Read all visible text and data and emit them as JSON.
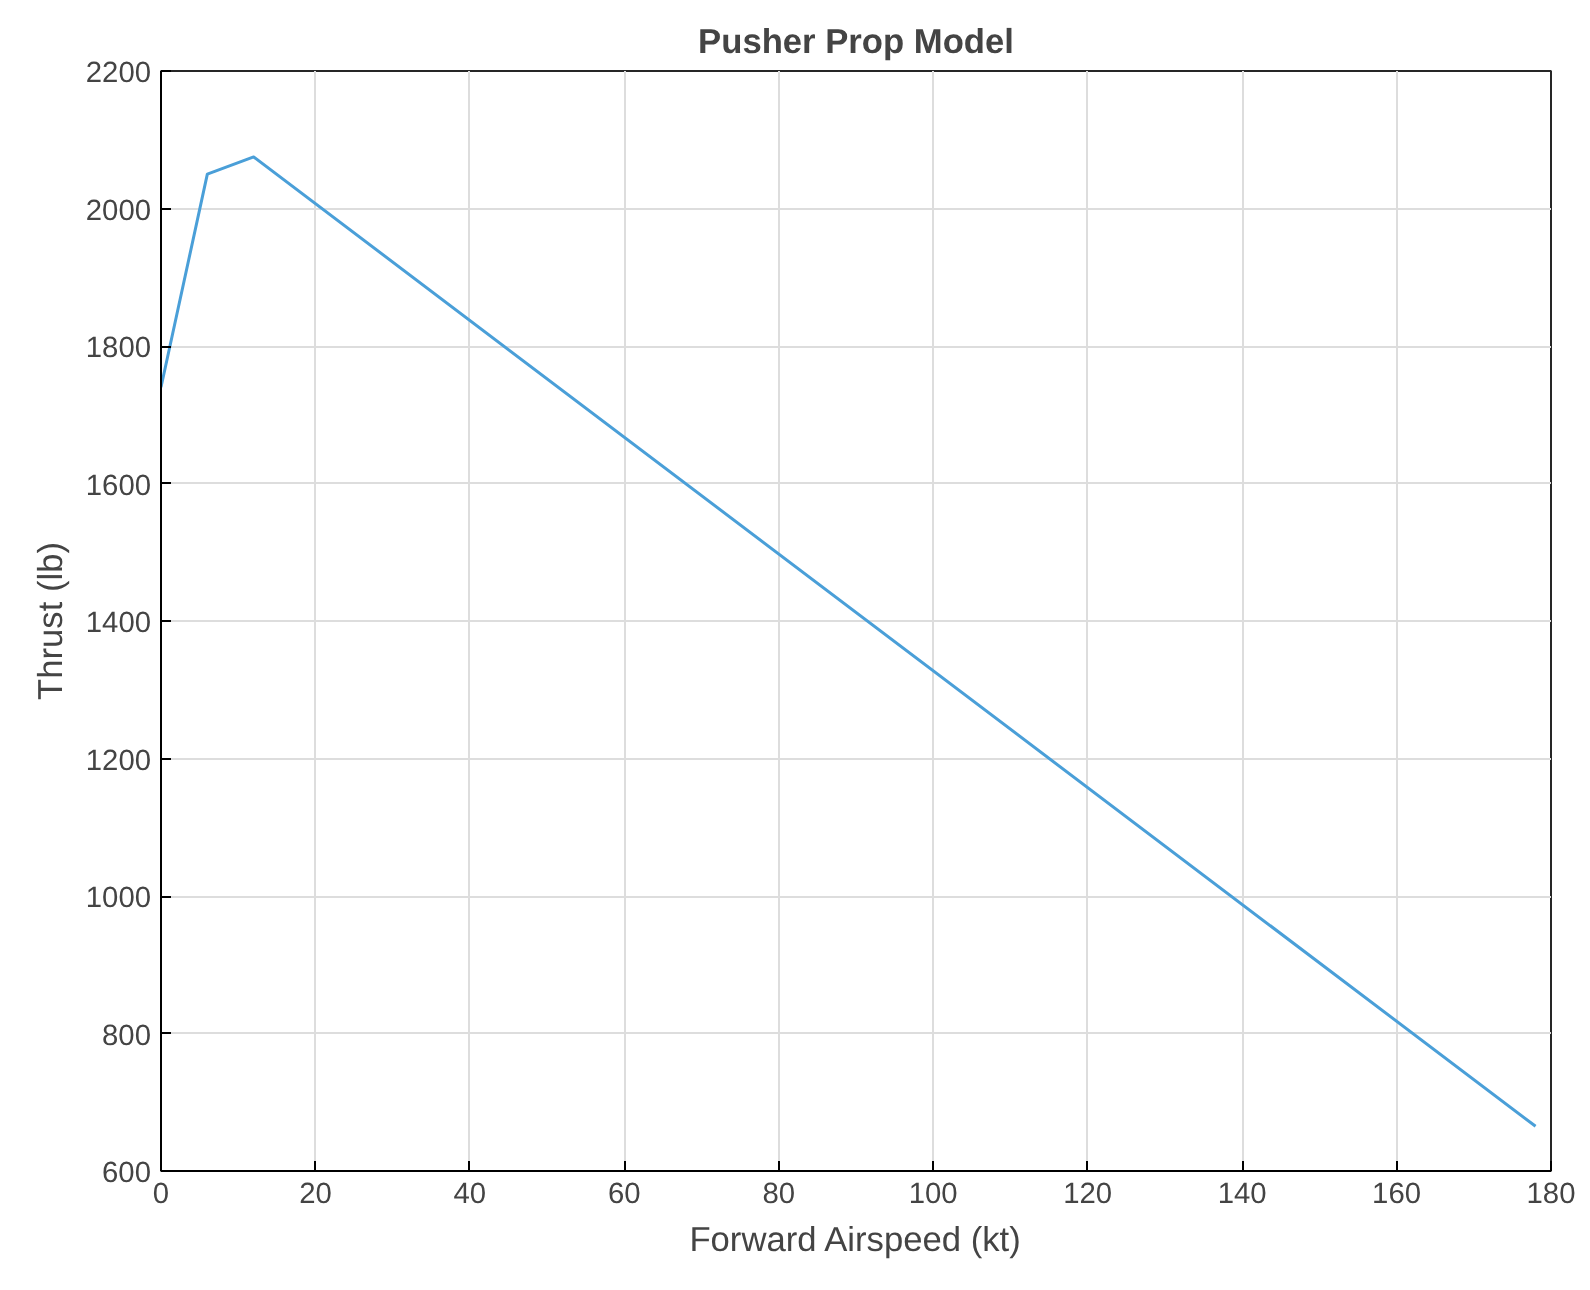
{
  "chart_data": {
    "type": "line",
    "title": "Pusher Prop Model",
    "xlabel": "Forward Airspeed (kt)",
    "ylabel": "Thrust (lb)",
    "x": [
      0,
      6,
      12,
      178
    ],
    "series": [
      {
        "color": "#4a9fd8",
        "values": [
          1740,
          2050,
          2075,
          665
        ]
      }
    ],
    "xlim": [
      0,
      180
    ],
    "xticks": [
      0,
      20,
      40,
      60,
      80,
      100,
      120,
      140,
      160,
      180
    ],
    "ylim": [
      600,
      2200
    ],
    "yticks": [
      600,
      800,
      1000,
      1200,
      1400,
      1600,
      1800,
      2000,
      2200
    ],
    "grid": true,
    "marker": "none",
    "line_style": "solid"
  }
}
